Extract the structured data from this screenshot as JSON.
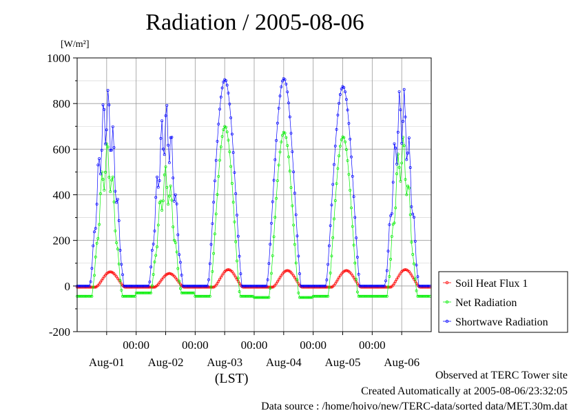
{
  "page": {
    "title": "Radiation / 2005-08-06",
    "footer_site": "Observed at TERC Tower site",
    "footer_created": "Created Automatically at 2005-08-06/23:32:05",
    "footer_source": "Data source : /home/hoivo/new/TERC-data/sorted  data/MET.30m.dat"
  },
  "chart_data": {
    "type": "line",
    "title": "Radiation / 2005-08-06",
    "ylabel": "[W/m²]",
    "xlabel": "(LST)",
    "ylim": [
      -200,
      1000
    ],
    "y_ticks": [
      -200,
      0,
      200,
      400,
      600,
      800,
      1000
    ],
    "x_range_hours": [
      0,
      144
    ],
    "x_tick_labels": [
      {
        "hour": 24,
        "label": "00:00"
      },
      {
        "hour": 48,
        "label": "00:00"
      },
      {
        "hour": 72,
        "label": "00:00"
      },
      {
        "hour": 96,
        "label": "00:00"
      },
      {
        "hour": 120,
        "label": "00:00"
      }
    ],
    "x_day_labels": [
      {
        "hour": 12,
        "label": "Aug-01"
      },
      {
        "hour": 36,
        "label": "Aug-02"
      },
      {
        "hour": 60,
        "label": "Aug-03"
      },
      {
        "hour": 84,
        "label": "Aug-04"
      },
      {
        "hour": 108,
        "label": "Aug-05"
      },
      {
        "hour": 132,
        "label": "Aug-06"
      }
    ],
    "grid": true,
    "legend_position": "right",
    "sample_interval_hours": 0.5,
    "series": [
      {
        "name": "Soil Heat Flux 1",
        "color": "#ff0000",
        "days": [
          {
            "day": 0,
            "peak_hour": 13.0,
            "peak": 62,
            "night": -5
          },
          {
            "day": 1,
            "peak_hour": 12.5,
            "peak": 55,
            "night": -5
          },
          {
            "day": 2,
            "peak_hour": 12.0,
            "peak": 72,
            "night": -5
          },
          {
            "day": 3,
            "peak_hour": 13.0,
            "peak": 68,
            "night": -5
          },
          {
            "day": 4,
            "peak_hour": 13.5,
            "peak": 68,
            "night": -5
          },
          {
            "day": 5,
            "peak_hour": 12.5,
            "peak": 72,
            "night": -5
          }
        ]
      },
      {
        "name": "Net Radiation",
        "color": "#00ee00",
        "days": [
          {
            "day": 0,
            "peak_hour": 12.5,
            "peak": 640,
            "night": -45
          },
          {
            "day": 1,
            "peak_hour": 12.0,
            "peak": 530,
            "night": -30
          },
          {
            "day": 2,
            "peak_hour": 12.0,
            "peak": 700,
            "night": -45
          },
          {
            "day": 3,
            "peak_hour": 12.5,
            "peak": 675,
            "night": -50
          },
          {
            "day": 4,
            "peak_hour": 12.5,
            "peak": 655,
            "night": -45
          },
          {
            "day": 5,
            "peak_hour": 12.5,
            "peak": 670,
            "night": -45
          }
        ]
      },
      {
        "name": "Shortwave Radiation",
        "color": "#0000ff",
        "days": [
          {
            "day": 0,
            "peak_hour": 12.5,
            "peak": 880,
            "night": 0
          },
          {
            "day": 1,
            "peak_hour": 12.0,
            "peak": 810,
            "night": 0
          },
          {
            "day": 2,
            "peak_hour": 12.0,
            "peak": 905,
            "night": 0
          },
          {
            "day": 3,
            "peak_hour": 12.5,
            "peak": 910,
            "night": 0
          },
          {
            "day": 4,
            "peak_hour": 12.5,
            "peak": 875,
            "night": 0
          },
          {
            "day": 5,
            "peak_hour": 12.5,
            "peak": 890,
            "night": 0
          }
        ]
      }
    ]
  }
}
